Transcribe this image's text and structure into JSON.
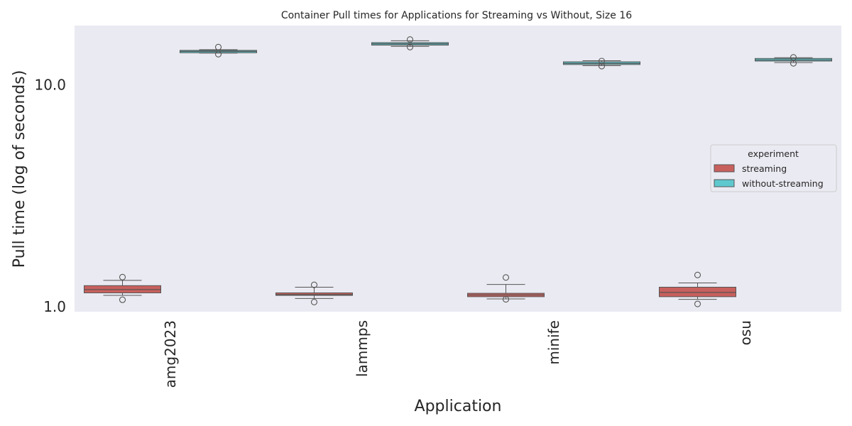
{
  "chart_data": {
    "type": "box",
    "title": "Container Pull times for Applications for Streaming vs Without, Size 16",
    "xlabel": "Application",
    "ylabel": "Pull time (log of seconds)",
    "yscale": "log",
    "ylim": [
      0.95,
      18.5
    ],
    "yticks": [
      1.0,
      10.0
    ],
    "ytick_labels": [
      "1.0",
      "10.0"
    ],
    "categories": [
      "amg2023",
      "lammps",
      "minife",
      "osu"
    ],
    "grid": false,
    "legend": {
      "title": "experiment",
      "position": "right"
    },
    "series": [
      {
        "name": "streaming",
        "color": "#c8605d",
        "boxes": [
          {
            "whisker_low": 1.125,
            "q1": 1.155,
            "median": 1.195,
            "q3": 1.245,
            "whisker_high": 1.315,
            "outliers": [
              1.36,
              1.075
            ]
          },
          {
            "whisker_low": 1.09,
            "q1": 1.125,
            "median": 1.135,
            "q3": 1.155,
            "whisker_high": 1.225,
            "outliers": [
              1.255,
              1.05
            ]
          },
          {
            "whisker_low": 1.085,
            "q1": 1.11,
            "median": 1.13,
            "q3": 1.15,
            "whisker_high": 1.26,
            "outliers": [
              1.355,
              1.08
            ]
          },
          {
            "whisker_low": 1.08,
            "q1": 1.11,
            "median": 1.16,
            "q3": 1.225,
            "whisker_high": 1.28,
            "outliers": [
              1.39,
              1.03
            ]
          }
        ]
      },
      {
        "name": "without-streaming",
        "color": "#5ec8cf",
        "boxes": [
          {
            "whisker_low": 13.9,
            "q1": 13.95,
            "median": 14.15,
            "q3": 14.3,
            "whisker_high": 14.4,
            "outliers": [
              14.8,
              13.75
            ]
          },
          {
            "whisker_low": 14.9,
            "q1": 15.1,
            "median": 15.3,
            "q3": 15.5,
            "whisker_high": 15.8,
            "outliers": [
              16.0,
              14.8
            ]
          },
          {
            "whisker_low": 12.2,
            "q1": 12.35,
            "median": 12.5,
            "q3": 12.7,
            "whisker_high": 12.85,
            "outliers": [
              12.8,
              12.15
            ]
          },
          {
            "whisker_low": 12.6,
            "q1": 12.8,
            "median": 12.95,
            "q3": 13.15,
            "whisker_high": 13.25,
            "outliers": [
              13.3,
              12.5
            ]
          }
        ]
      }
    ]
  }
}
